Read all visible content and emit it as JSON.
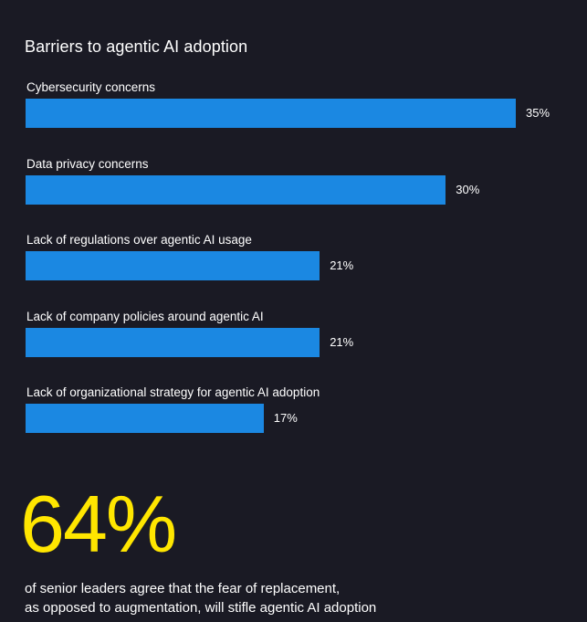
{
  "colors": {
    "background": "#1a1a24",
    "bar": "#1b88e2",
    "accent": "#ffe600",
    "text": "#ffffff"
  },
  "chart_data": {
    "type": "bar",
    "orientation": "horizontal",
    "title": "Barriers to agentic AI adoption",
    "categories": [
      "Cybersecurity concerns",
      "Data privacy concerns",
      "Lack of regulations over agentic AI usage",
      "Lack of company policies around agentic AI",
      "Lack of organizational strategy for agentic AI adoption"
    ],
    "values": [
      35,
      30,
      21,
      21,
      17
    ],
    "value_labels": [
      "35%",
      "30%",
      "21%",
      "21%",
      "17%"
    ],
    "unit": "%",
    "grid": false,
    "legend": "none"
  },
  "stat": {
    "value": "64%",
    "description_line1": "of senior leaders agree that the fear of replacement,",
    "description_line2": "as opposed to augmentation, will stifle agentic AI adoption"
  }
}
